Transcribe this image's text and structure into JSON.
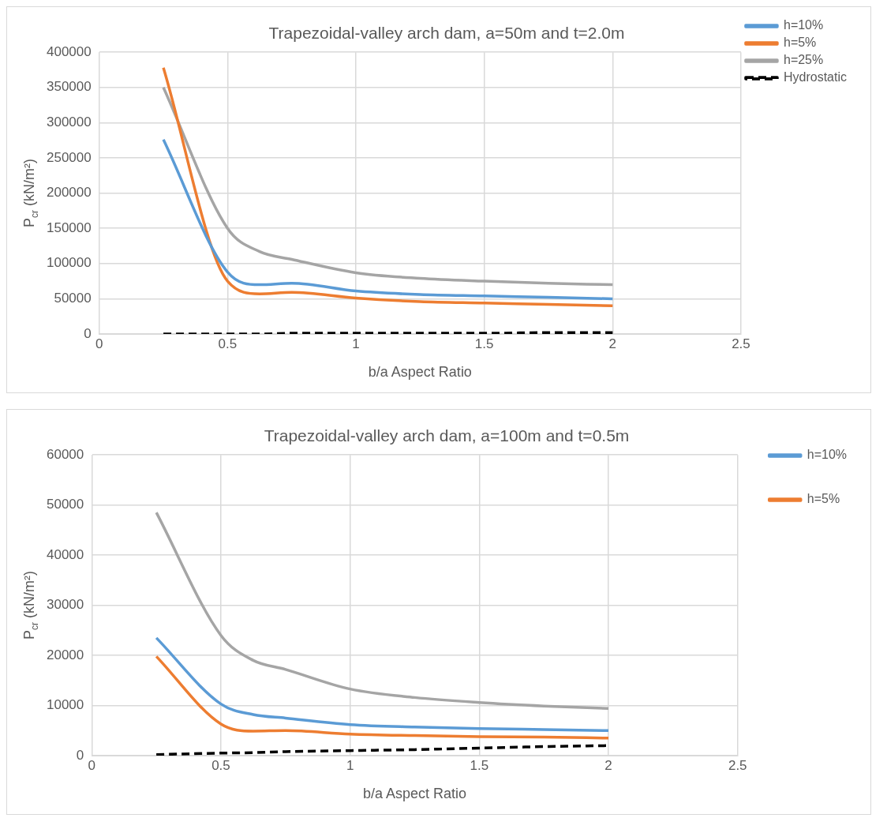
{
  "chart_data": [
    {
      "type": "line",
      "title": "Trapezoidal-valley arch dam, a=50m and t=2.0m",
      "xlabel": "b/a Aspect Ratio",
      "ylabel": "P$_{cr}$ (kN/m²)",
      "x": [
        0.25,
        0.5,
        0.625,
        0.75,
        1,
        1.25,
        1.5,
        1.75,
        2
      ],
      "xlim": [
        0,
        2.5
      ],
      "xticks": [
        0,
        0.5,
        1,
        1.5,
        2,
        2.5
      ],
      "ylim": [
        0,
        400000
      ],
      "yticks": [
        0,
        50000,
        100000,
        150000,
        200000,
        250000,
        300000,
        350000,
        400000
      ],
      "grid": true,
      "legend": "right",
      "marker": "none",
      "series": [
        {
          "name": "h=10%",
          "color": "#5b9bd5",
          "values": [
            276000,
            88000,
            70000,
            72000,
            61000,
            56000,
            54000,
            52000,
            50000
          ]
        },
        {
          "name": "h=5%",
          "color": "#ed7d31",
          "values": [
            378000,
            75000,
            57000,
            59000,
            51000,
            46000,
            44000,
            42000,
            40000
          ]
        },
        {
          "name": "h=25%",
          "color": "#a5a5a5",
          "values": [
            350000,
            150000,
            117000,
            106000,
            87000,
            79000,
            75000,
            72000,
            70000
          ]
        },
        {
          "name": "Hydrostatic",
          "color": "#000000",
          "line_style": "dashed",
          "values": [
            0,
            0,
            0,
            1000,
            1000,
            1000,
            1000,
            2000,
            2000
          ]
        }
      ]
    },
    {
      "type": "line",
      "title": "Trapezoidal-valley arch dam, a=100m and t=0.5m",
      "xlabel": "b/a Aspect Ratio",
      "ylabel": "P$_{cr}$ (kN/m²)",
      "x": [
        0.25,
        0.5,
        0.625,
        0.75,
        1,
        1.25,
        1.5,
        1.75,
        2
      ],
      "xlim": [
        0,
        2.5
      ],
      "xticks": [
        0,
        0.5,
        1,
        1.5,
        2,
        2.5
      ],
      "ylim": [
        0,
        60000
      ],
      "yticks": [
        0,
        10000,
        20000,
        30000,
        40000,
        50000,
        60000
      ],
      "grid": true,
      "legend": "right",
      "marker": "none",
      "series": [
        {
          "name": "h=10%",
          "color": "#5b9bd5",
          "values": [
            23500,
            10300,
            8200,
            7500,
            6200,
            5700,
            5400,
            5200,
            5000
          ]
        },
        {
          "name": "h=5%",
          "color": "#ed7d31",
          "values": [
            19800,
            6300,
            4900,
            5000,
            4300,
            4000,
            3800,
            3700,
            3500
          ]
        },
        {
          "color": "#a5a5a5",
          "values": [
            48500,
            24000,
            19000,
            17200,
            13300,
            11600,
            10600,
            9900,
            9400
          ]
        },
        {
          "color": "#000000",
          "line_style": "dashed",
          "values": [
            200,
            500,
            600,
            800,
            1000,
            1200,
            1500,
            1800,
            2000
          ]
        }
      ]
    }
  ]
}
